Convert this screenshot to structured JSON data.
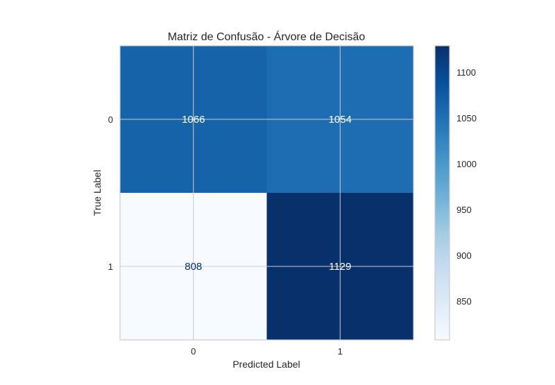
{
  "chart_data": {
    "type": "heatmap",
    "title": "Matriz de Confusão - Árvore de Decisão",
    "xlabel": "Predicted Label",
    "ylabel": "True Label",
    "x_categories": [
      "0",
      "1"
    ],
    "y_categories": [
      "0",
      "1"
    ],
    "values": [
      [
        1066,
        1054
      ],
      [
        808,
        1129
      ]
    ],
    "colormap": "Blues",
    "colorbar": {
      "range": [
        808,
        1129
      ],
      "ticks": [
        850,
        900,
        950,
        1000,
        1050,
        1100
      ]
    },
    "grid": true
  }
}
